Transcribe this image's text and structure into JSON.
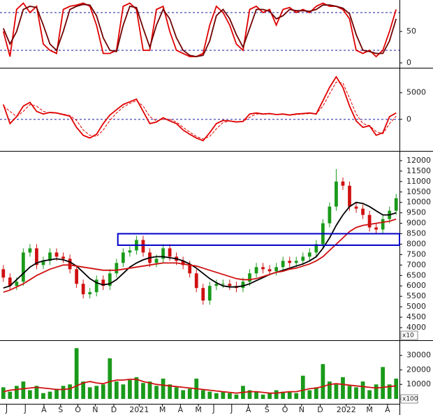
{
  "chart_data": [
    {
      "type": "line",
      "xlim": [
        -0.5,
        59.5
      ],
      "ylim": [
        0,
        100
      ],
      "yticks": [
        0,
        50
      ],
      "hlines": [
        20,
        80
      ],
      "hline_color": "#1a1aa0",
      "series": [
        {
          "color": "#e00000",
          "values": [
            50,
            10,
            85,
            95,
            80,
            90,
            30,
            20,
            15,
            85,
            90,
            92,
            95,
            90,
            60,
            15,
            15,
            20,
            90,
            95,
            85,
            20,
            20,
            85,
            90,
            50,
            20,
            15,
            10,
            10,
            15,
            60,
            90,
            80,
            60,
            30,
            20,
            85,
            90,
            80,
            85,
            60,
            85,
            88,
            80,
            85,
            80,
            90,
            95,
            90,
            90,
            85,
            70,
            20,
            15,
            20,
            10,
            20,
            50,
            85
          ]
        },
        {
          "color": "#700000",
          "values": [
            55,
            30,
            50,
            85,
            90,
            88,
            60,
            30,
            20,
            50,
            85,
            90,
            93,
            92,
            75,
            40,
            20,
            18,
            60,
            90,
            88,
            55,
            25,
            60,
            85,
            70,
            40,
            20,
            12,
            10,
            12,
            35,
            75,
            85,
            70,
            45,
            25,
            55,
            85,
            85,
            82,
            70,
            75,
            85,
            83,
            83,
            82,
            85,
            92,
            92,
            90,
            87,
            78,
            45,
            20,
            18,
            15,
            15,
            35,
            70
          ]
        }
      ]
    },
    {
      "type": "line",
      "xlim": [
        -0.5,
        59.5
      ],
      "ylim": [
        -5800,
        9300
      ],
      "yticks": [
        0,
        5000
      ],
      "hlines": [
        0
      ],
      "hline_color": "#1a1aa0",
      "series": [
        {
          "color": "#e00000",
          "values": [
            2800,
            -800,
            500,
            2500,
            3200,
            1500,
            1000,
            1300,
            1200,
            900,
            600,
            -1500,
            -3000,
            -3500,
            -2800,
            -800,
            800,
            1800,
            2800,
            3300,
            3800,
            1500,
            -800,
            -500,
            300,
            -300,
            -800,
            -2000,
            -2800,
            -3500,
            -4000,
            -2500,
            -800,
            -200,
            -300,
            -500,
            -400,
            1000,
            1200,
            1000,
            1100,
            900,
            1000,
            800,
            1000,
            1100,
            1200,
            1000,
            3500,
            6000,
            8000,
            6000,
            2500,
            -300,
            -1500,
            -1200,
            -3000,
            -2500,
            500,
            1200
          ]
        },
        {
          "color": "#e00000",
          "dashed": true,
          "values": [
            2500,
            1500,
            500,
            1500,
            2800,
            2500,
            1500,
            1200,
            1200,
            1000,
            700,
            -200,
            -2000,
            -3000,
            -3200,
            -2000,
            -200,
            1200,
            2300,
            3000,
            3500,
            2500,
            500,
            -300,
            0,
            0,
            -500,
            -1500,
            -2400,
            -3200,
            -3700,
            -3200,
            -1800,
            -600,
            -300,
            -400,
            -400,
            400,
            1000,
            1000,
            1000,
            950,
            950,
            850,
            900,
            1000,
            1100,
            1050,
            2500,
            4800,
            7000,
            6800,
            4000,
            1000,
            -800,
            -1200,
            -2300,
            -2700,
            -800,
            600
          ]
        }
      ]
    },
    {
      "type": "candlestick",
      "xlim": [
        -0.5,
        59.5
      ],
      "ylim": [
        3430,
        12400
      ],
      "yticks": [
        4000,
        4500,
        5000,
        5500,
        6000,
        6500,
        7000,
        7500,
        8000,
        8500,
        9000,
        9500,
        10000,
        10500,
        11000,
        11500,
        12000
      ],
      "y_unit_label": "x10",
      "up_color": "#1a9a1a",
      "down_color": "#d01010",
      "open": [
        6800,
        6400,
        6000,
        6200,
        7600,
        7800,
        7000,
        7200,
        7600,
        7400,
        7300,
        6800,
        6100,
        5600,
        5700,
        6300,
        6000,
        6600,
        7100,
        7600,
        7700,
        8200,
        7600,
        7100,
        7300,
        7800,
        7400,
        7200,
        7000,
        6600,
        5900,
        5300,
        6000,
        6100,
        6100,
        6000,
        5900,
        6200,
        6600,
        6900,
        6800,
        6700,
        6900,
        7200,
        7100,
        7200,
        7400,
        7600,
        8000,
        9000,
        9800,
        11000,
        10800,
        9800,
        9700,
        9400,
        8800,
        8700,
        9200,
        9600
      ],
      "high": [
        7000,
        6600,
        6400,
        7800,
        8000,
        8000,
        7400,
        7800,
        7800,
        7600,
        7500,
        7000,
        6300,
        5900,
        6500,
        6500,
        6800,
        7300,
        7800,
        7900,
        8400,
        8400,
        7800,
        7500,
        8000,
        8000,
        7600,
        7400,
        7200,
        6800,
        6100,
        6200,
        6300,
        6300,
        6300,
        6200,
        6400,
        6800,
        7100,
        7100,
        7000,
        7100,
        7400,
        7400,
        7400,
        7600,
        7800,
        8200,
        9200,
        10000,
        11600,
        11200,
        11000,
        10000,
        9900,
        9600,
        9000,
        9400,
        9800,
        10400
      ],
      "low": [
        6200,
        5800,
        5800,
        6000,
        7400,
        6800,
        6800,
        7000,
        7200,
        7100,
        6600,
        5900,
        5400,
        5400,
        5500,
        5800,
        5800,
        6400,
        6900,
        7400,
        7500,
        7400,
        6900,
        6900,
        7100,
        7200,
        7000,
        6800,
        6400,
        5700,
        5100,
        5100,
        5800,
        5900,
        5800,
        5700,
        5700,
        6000,
        6400,
        6600,
        6500,
        6500,
        6700,
        6900,
        6900,
        7000,
        7200,
        7400,
        7800,
        8800,
        9600,
        10600,
        9600,
        9500,
        9200,
        8600,
        8500,
        8500,
        9000,
        9400
      ],
      "close": [
        6400,
        6000,
        6200,
        7600,
        7800,
        7000,
        7200,
        7600,
        7400,
        7300,
        6800,
        6100,
        5600,
        5700,
        6300,
        6000,
        6600,
        7100,
        7600,
        7700,
        8200,
        7600,
        7100,
        7300,
        7800,
        7400,
        7200,
        7000,
        6600,
        5900,
        5300,
        6000,
        6100,
        6100,
        6000,
        5900,
        6200,
        6600,
        6900,
        6800,
        6700,
        6900,
        7200,
        7100,
        7200,
        7400,
        7600,
        8000,
        9000,
        9800,
        11000,
        10800,
        9800,
        9700,
        9400,
        8800,
        8700,
        9200,
        9600,
        10200
      ],
      "series": [
        {
          "color": "#000000",
          "values": [
            5900,
            6000,
            6300,
            6600,
            6900,
            7100,
            7200,
            7250,
            7300,
            7250,
            7150,
            6950,
            6650,
            6350,
            6150,
            6050,
            6100,
            6300,
            6600,
            6900,
            7100,
            7250,
            7350,
            7400,
            7400,
            7350,
            7300,
            7200,
            7050,
            6850,
            6600,
            6350,
            6150,
            6000,
            5950,
            5950,
            6000,
            6100,
            6250,
            6400,
            6550,
            6650,
            6750,
            6850,
            6950,
            7050,
            7200,
            7400,
            7800,
            8300,
            8900,
            9400,
            9800,
            10000,
            9950,
            9800,
            9600,
            9400,
            9400,
            9500
          ]
        },
        {
          "color": "#d01010",
          "values": [
            5700,
            5800,
            5950,
            6100,
            6300,
            6500,
            6650,
            6800,
            6900,
            7000,
            7000,
            6950,
            6900,
            6850,
            6800,
            6750,
            6750,
            6750,
            6800,
            6850,
            6900,
            6950,
            7000,
            7050,
            7100,
            7100,
            7100,
            7050,
            7000,
            6950,
            6850,
            6750,
            6650,
            6550,
            6450,
            6350,
            6300,
            6300,
            6350,
            6450,
            6550,
            6650,
            6700,
            6800,
            6850,
            6950,
            7050,
            7200,
            7400,
            7700,
            8000,
            8300,
            8600,
            8800,
            8900,
            8950,
            9000,
            9050,
            9100,
            9200
          ]
        }
      ],
      "zone": {
        "x": [
          17.2,
          59.5
        ],
        "y": [
          7950,
          8500
        ],
        "color": "#0000c8"
      }
    },
    {
      "type": "bar",
      "xlim": [
        -0.5,
        59.5
      ],
      "ylim": [
        -2900,
        39000
      ],
      "yticks": [
        0,
        10000,
        20000,
        30000
      ],
      "y_unit_label": "x100",
      "color": "#1a9a1a",
      "values": [
        8000,
        5000,
        9000,
        12000,
        6000,
        9000,
        4000,
        5000,
        7000,
        9000,
        10000,
        35000,
        12000,
        8000,
        9000,
        10000,
        28000,
        12000,
        10000,
        13000,
        15000,
        11000,
        12000,
        9000,
        14000,
        10000,
        8000,
        6000,
        7000,
        14000,
        6000,
        5000,
        4000,
        5000,
        4000,
        3000,
        9000,
        6000,
        5000,
        3000,
        4000,
        6000,
        5000,
        5000,
        4000,
        16000,
        6000,
        8000,
        24000,
        12000,
        10000,
        15000,
        9000,
        8000,
        12000,
        6000,
        10000,
        22000,
        10000,
        14000
      ],
      "series": [
        {
          "color": "#d01010",
          "values": [
            5000,
            6000,
            6500,
            7000,
            7500,
            8000,
            7500,
            7000,
            6500,
            6500,
            7000,
            9000,
            11000,
            12000,
            11000,
            10500,
            12000,
            13000,
            13000,
            13500,
            13500,
            12000,
            11000,
            10000,
            9500,
            9000,
            8500,
            8000,
            7500,
            7000,
            6500,
            6000,
            5500,
            5000,
            4500,
            4000,
            4500,
            5000,
            5000,
            4500,
            4000,
            4000,
            4500,
            5000,
            5000,
            6000,
            7000,
            7500,
            8500,
            10000,
            10500,
            10000,
            9500,
            9000,
            8500,
            8000,
            7500,
            8000,
            8500,
            9000
          ]
        }
      ],
      "xticks": [
        {
          "value": 0.5,
          "label": "J"
        },
        {
          "value": 3.3,
          "label": "J"
        },
        {
          "value": 6.1,
          "label": "A"
        },
        {
          "value": 8.6,
          "label": "S"
        },
        {
          "value": 11.2,
          "label": "O"
        },
        {
          "value": 13.8,
          "label": "N"
        },
        {
          "value": 16.6,
          "label": "D"
        },
        {
          "value": 20.4,
          "label": "2021"
        },
        {
          "value": 23.9,
          "label": "M"
        },
        {
          "value": 26.6,
          "label": "A"
        },
        {
          "value": 29.3,
          "label": "M"
        },
        {
          "value": 31.6,
          "label": "J"
        },
        {
          "value": 34.3,
          "label": "J"
        },
        {
          "value": 36.8,
          "label": "A"
        },
        {
          "value": 39.6,
          "label": "S"
        },
        {
          "value": 42.3,
          "label": "O"
        },
        {
          "value": 44.8,
          "label": "N"
        },
        {
          "value": 47.6,
          "label": "D"
        },
        {
          "value": 51.5,
          "label": "2022"
        },
        {
          "value": 55.0,
          "label": "M"
        },
        {
          "value": 57.7,
          "label": "A"
        }
      ]
    }
  ]
}
